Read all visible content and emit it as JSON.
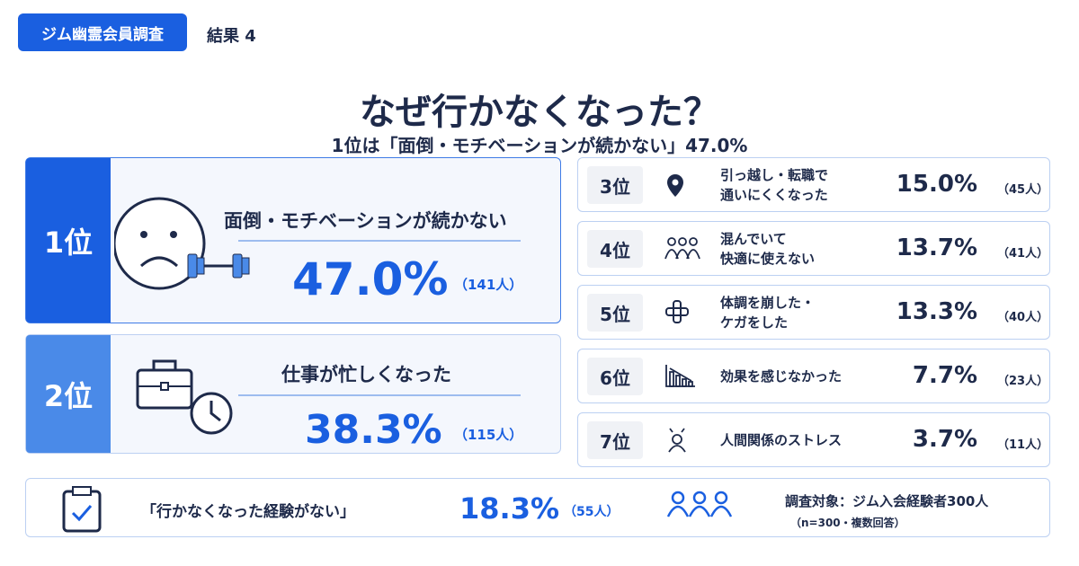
{
  "header": {
    "badge": "ジム幽霊会員調査",
    "label": "結果 4"
  },
  "title": "なぜ行かなくなった？",
  "subtitle": "1位は「面倒・モチベーションが続かない」47.0%",
  "ranks": [
    {
      "rank": "1位",
      "reason": [
        "面倒・モチベーションが続かない"
      ],
      "percent": "47.0%",
      "count": "（141人）"
    },
    {
      "rank": "2位",
      "reason": [
        "仕事が忙しくなった"
      ],
      "percent": "38.3%",
      "count": "（115人）"
    },
    {
      "rank": "3位",
      "reason": [
        "引っ越し・転職で",
        "通いにくくなった"
      ],
      "percent": "15.0%",
      "count": "（45人）"
    },
    {
      "rank": "4位",
      "reason": [
        "混んでいて",
        "快適に使えない"
      ],
      "percent": "13.7%",
      "count": "（41人）"
    },
    {
      "rank": "5位",
      "reason": [
        "体調を崩した・",
        "ケガをした"
      ],
      "percent": "13.3%",
      "count": "（40人）"
    },
    {
      "rank": "6位",
      "reason": [
        "効果を感じなかった"
      ],
      "percent": "7.7%",
      "count": "（23人）"
    },
    {
      "rank": "7位",
      "reason": [
        "人間関係のストレス"
      ],
      "percent": "3.7%",
      "count": "（11人）"
    }
  ],
  "none": {
    "reason": "「行かなくなった経験がない」",
    "percent": "18.3%",
    "count": "（55人）"
  },
  "survey": {
    "target": "調査対象：ジム入会経験者300人",
    "note": "（n=300・複数回答）"
  }
}
